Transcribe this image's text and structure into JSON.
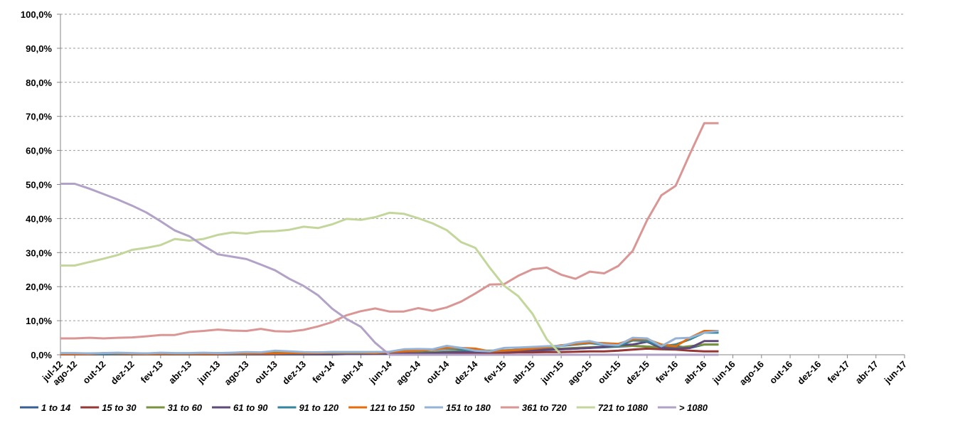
{
  "chart_data": {
    "type": "line",
    "x": [
      "jul-12",
      "ago-12",
      "set-12",
      "out-12",
      "nov-12",
      "dez-12",
      "jan-13",
      "fev-13",
      "mar-13",
      "abr-13",
      "mai-13",
      "jun-13",
      "jul-13",
      "ago-13",
      "set-13",
      "out-13",
      "nov-13",
      "dez-13",
      "jan-14",
      "fev-14",
      "mar-14",
      "abr-14",
      "mai-14",
      "jun-14",
      "jul-14",
      "ago-14",
      "set-14",
      "out-14",
      "nov-14",
      "dez-14",
      "jan-15",
      "fev-15",
      "mar-15",
      "abr-15",
      "mai-15",
      "jun-15",
      "jul-15",
      "ago-15",
      "set-15",
      "out-15",
      "nov-15",
      "dez-15",
      "jan-16",
      "fev-16",
      "mar-16",
      "abr-16",
      "mai-16"
    ],
    "xlim": [
      "jul-12",
      "jun-17"
    ],
    "xticks": [
      "jul-12",
      "ago-12",
      "out-12",
      "dez-12",
      "fev-13",
      "abr-13",
      "jun-13",
      "ago-13",
      "out-13",
      "dez-13",
      "fev-14",
      "abr-14",
      "jun-14",
      "ago-14",
      "out-14",
      "dez-14",
      "fev-15",
      "abr-15",
      "jun-15",
      "ago-15",
      "out-15",
      "dez-15",
      "fev-16",
      "abr-16",
      "jun-16",
      "ago-16",
      "out-16",
      "dez-16",
      "fev-17",
      "abr-17",
      "jun-17"
    ],
    "ylim": [
      0,
      100
    ],
    "yticks": [
      {
        "value": 0,
        "label": "0,0%"
      },
      {
        "value": 10,
        "label": "10,0%"
      },
      {
        "value": 20,
        "label": "20,0%"
      },
      {
        "value": 30,
        "label": "30,0%"
      },
      {
        "value": 40,
        "label": "40,0%"
      },
      {
        "value": 50,
        "label": "50,0%"
      },
      {
        "value": 60,
        "label": "60,0%"
      },
      {
        "value": 70,
        "label": "70,0%"
      },
      {
        "value": 80,
        "label": "80,0%"
      },
      {
        "value": 90,
        "label": "90,0%"
      },
      {
        "value": 100,
        "label": "100,0%"
      }
    ],
    "grid": true,
    "legend": "bottom",
    "series": [
      {
        "name": "1 to 14",
        "color": "#376092",
        "values": [
          0.3,
          0.3,
          0.3,
          0.3,
          0.3,
          0.3,
          0.3,
          0.3,
          0.3,
          0.3,
          0.3,
          0.3,
          0.3,
          0.3,
          0.3,
          0.3,
          0.3,
          0.3,
          0.3,
          0.3,
          0.4,
          0.4,
          0.5,
          0.5,
          0.6,
          0.7,
          0.8,
          1.0,
          0.9,
          0.8,
          0.9,
          1.0,
          1.1,
          1.2,
          1.4,
          1.6,
          1.8,
          2.0,
          2.2,
          2.4,
          2.6,
          2.4,
          2.0,
          2.5,
          2.0,
          3.0,
          3.0
        ]
      },
      {
        "name": "15 to 30",
        "color": "#953735",
        "values": [
          0.2,
          0.2,
          0.2,
          0.2,
          0.2,
          0.2,
          0.2,
          0.2,
          0.2,
          0.2,
          0.2,
          0.2,
          0.2,
          0.2,
          0.2,
          0.2,
          0.2,
          0.2,
          0.2,
          0.2,
          0.3,
          0.3,
          0.3,
          0.4,
          0.4,
          0.4,
          0.5,
          0.5,
          0.5,
          0.5,
          0.6,
          0.6,
          0.7,
          0.7,
          0.8,
          0.8,
          0.9,
          1.0,
          1.0,
          1.2,
          1.5,
          1.8,
          1.6,
          1.5,
          1.2,
          1.0,
          1.0
        ]
      },
      {
        "name": "31 to 60",
        "color": "#77933c",
        "values": [
          0.4,
          0.4,
          0.4,
          0.4,
          0.4,
          0.4,
          0.4,
          0.4,
          0.4,
          0.4,
          0.5,
          0.5,
          0.5,
          0.5,
          0.6,
          0.6,
          0.6,
          0.7,
          0.7,
          0.8,
          0.8,
          0.8,
          0.8,
          0.7,
          0.6,
          0.6,
          0.7,
          0.8,
          1.0,
          1.2,
          1.2,
          1.3,
          1.4,
          1.6,
          1.8,
          1.8,
          2.0,
          2.2,
          2.4,
          2.6,
          2.6,
          2.4,
          2.2,
          2.0,
          2.5,
          3.0,
          3.0
        ]
      },
      {
        "name": "61 to 90",
        "color": "#604a7b",
        "values": [
          0.1,
          0.1,
          0.1,
          0.1,
          0.1,
          0.1,
          0.1,
          0.1,
          0.1,
          0.1,
          0.1,
          0.1,
          0.1,
          0.1,
          0.1,
          0.1,
          0.1,
          0.1,
          0.1,
          0.1,
          0.2,
          0.2,
          0.3,
          0.3,
          0.4,
          0.4,
          0.5,
          0.6,
          0.8,
          0.8,
          0.9,
          1.0,
          1.2,
          1.3,
          1.5,
          1.6,
          1.8,
          2.0,
          2.4,
          2.8,
          3.0,
          3.8,
          2.0,
          1.8,
          2.0,
          4.0,
          4.0
        ]
      },
      {
        "name": "91 to 120",
        "color": "#31859c",
        "values": [
          0.2,
          0.2,
          0.2,
          0.2,
          0.2,
          0.2,
          0.2,
          0.2,
          0.2,
          0.2,
          0.3,
          0.3,
          0.3,
          0.3,
          0.4,
          0.4,
          0.4,
          0.4,
          0.5,
          0.5,
          0.5,
          0.5,
          0.6,
          0.8,
          1.0,
          1.2,
          1.5,
          1.8,
          1.5,
          1.2,
          1.0,
          1.2,
          1.5,
          1.8,
          2.2,
          2.6,
          3.0,
          3.4,
          3.0,
          2.6,
          4.2,
          4.0,
          2.5,
          3.0,
          4.5,
          6.5,
          6.5
        ]
      },
      {
        "name": "121 to 150",
        "color": "#e46c0a",
        "values": [
          0.2,
          0.2,
          0.2,
          0.5,
          0.4,
          0.3,
          0.2,
          0.3,
          0.3,
          0.3,
          0.3,
          0.3,
          0.4,
          0.4,
          0.4,
          0.4,
          0.5,
          0.5,
          0.5,
          0.6,
          0.6,
          0.6,
          0.5,
          0.8,
          1.0,
          1.2,
          1.5,
          2.0,
          2.0,
          1.8,
          1.0,
          1.2,
          1.4,
          1.8,
          2.2,
          2.8,
          3.2,
          3.6,
          3.4,
          3.2,
          4.5,
          4.6,
          3.0,
          2.5,
          5.0,
          7.0,
          7.0
        ]
      },
      {
        "name": "151 to 180",
        "color": "#95b3d7",
        "values": [
          0.5,
          0.5,
          0.4,
          0.5,
          0.6,
          0.5,
          0.4,
          0.6,
          0.5,
          0.5,
          0.6,
          0.5,
          0.6,
          0.8,
          0.7,
          1.2,
          1.0,
          0.8,
          0.7,
          0.8,
          0.8,
          0.8,
          0.8,
          0.9,
          1.6,
          1.7,
          1.6,
          2.6,
          2.0,
          1.2,
          1.0,
          2.0,
          2.1,
          2.3,
          2.5,
          2.6,
          3.6,
          4.0,
          3.0,
          2.8,
          5.0,
          4.8,
          2.5,
          4.8,
          5.0,
          6.5,
          7.0
        ]
      },
      {
        "name": "361 to 720",
        "color": "#d99694",
        "values": [
          4.8,
          4.8,
          5.0,
          4.8,
          5.0,
          5.1,
          5.4,
          5.8,
          5.8,
          6.7,
          7.0,
          7.4,
          7.1,
          7.0,
          7.6,
          6.9,
          6.8,
          7.3,
          8.3,
          9.6,
          11.6,
          12.8,
          13.6,
          12.7,
          12.7,
          13.7,
          12.9,
          13.9,
          15.6,
          18.0,
          20.6,
          20.7,
          23.2,
          25.1,
          25.6,
          23.5,
          22.3,
          24.4,
          23.9,
          26.1,
          30.5,
          39.5,
          46.8,
          49.6,
          59.0,
          68.0,
          68.0
        ]
      },
      {
        "name": "721 to 1080",
        "color": "#c3d69b",
        "values": [
          26.2,
          26.2,
          27.2,
          28.2,
          29.3,
          30.8,
          31.4,
          32.2,
          34.0,
          33.5,
          34.0,
          35.2,
          35.9,
          35.6,
          36.2,
          36.3,
          36.7,
          37.6,
          37.2,
          38.3,
          39.9,
          39.6,
          40.4,
          41.7,
          41.4,
          40.1,
          38.6,
          36.6,
          33.1,
          31.4,
          25.6,
          20.3,
          17.2,
          12.0,
          4.5,
          0,
          0,
          0,
          0,
          0,
          0,
          0,
          0,
          0,
          0,
          0,
          0
        ]
      },
      {
        "name": "> 1080",
        "color": "#b3a2c7",
        "values": [
          50.2,
          50.2,
          48.8,
          47.2,
          45.6,
          43.8,
          41.8,
          39.2,
          36.5,
          34.8,
          32.0,
          29.5,
          28.8,
          28.1,
          26.5,
          24.8,
          22.3,
          20.2,
          17.5,
          13.5,
          10.5,
          8.2,
          3.5,
          0,
          0,
          0,
          0,
          0,
          0,
          0,
          0,
          0,
          0,
          0,
          0,
          0,
          0,
          0,
          0,
          0,
          0,
          0,
          0,
          0,
          0,
          0,
          0
        ]
      }
    ]
  }
}
